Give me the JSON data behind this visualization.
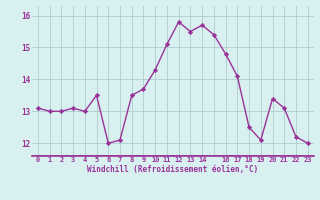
{
  "x": [
    0,
    1,
    2,
    3,
    4,
    5,
    6,
    7,
    8,
    9,
    10,
    11,
    12,
    13,
    14,
    15,
    16,
    17,
    18,
    19,
    20,
    21,
    22,
    23
  ],
  "y": [
    13.1,
    13.0,
    13.0,
    13.1,
    13.0,
    13.5,
    12.0,
    12.1,
    13.5,
    13.7,
    14.3,
    15.1,
    15.8,
    15.5,
    15.7,
    15.4,
    14.8,
    14.1,
    12.5,
    12.1,
    13.4,
    13.1,
    12.2,
    12.0
  ],
  "line_color": "#993399",
  "marker": "D",
  "marker_size": 2.2,
  "bg_color": "#d8f0f0",
  "grid_color": "#b0cccc",
  "xlabel": "Windchill (Refroidissement éolien,°C)",
  "ylabel_ticks": [
    "12",
    "13",
    "14",
    "15",
    "16"
  ],
  "yticks": [
    12,
    13,
    14,
    15,
    16
  ],
  "ylim": [
    11.6,
    16.3
  ],
  "xlim": [
    -0.5,
    23.5
  ],
  "xtick_labels": [
    "0",
    "1",
    "2",
    "3",
    "4",
    "5",
    "6",
    "7",
    "8",
    "9",
    "10",
    "11",
    "12",
    "13",
    "14",
    "",
    "16",
    "17",
    "18",
    "19",
    "20",
    "21",
    "22",
    "23"
  ],
  "font_color": "#993399",
  "linewidth": 1.0,
  "separator_color": "#993399"
}
